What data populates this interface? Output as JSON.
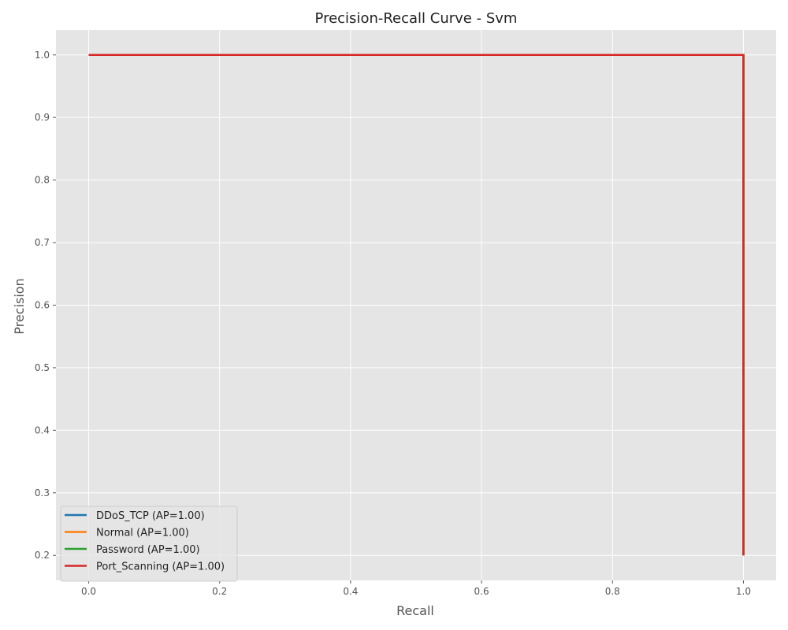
{
  "chart_data": {
    "type": "line",
    "title": "Precision-Recall Curve - Svm",
    "xlabel": "Recall",
    "ylabel": "Precision",
    "xlim": [
      -0.05,
      1.05
    ],
    "ylim": [
      0.16,
      1.04
    ],
    "xticks": [
      0.0,
      0.2,
      0.4,
      0.6,
      0.8,
      1.0
    ],
    "xtick_labels": [
      "0.0",
      "0.2",
      "0.4",
      "0.6",
      "0.8",
      "1.0"
    ],
    "yticks": [
      0.2,
      0.3,
      0.4,
      0.5,
      0.6,
      0.7,
      0.8,
      0.9,
      1.0
    ],
    "ytick_labels": [
      "0.2",
      "0.3",
      "0.4",
      "0.5",
      "0.6",
      "0.7",
      "0.8",
      "0.9",
      "1.0"
    ],
    "grid": true,
    "legend_position": "bottom-left",
    "background_color": "#e5e5e5",
    "series": [
      {
        "name": "DDoS_TCP (AP=1.00)",
        "color": "#1f77b4",
        "x": [
          0.0,
          1.0,
          1.0
        ],
        "y": [
          1.0,
          1.0,
          0.2
        ]
      },
      {
        "name": "Normal (AP=1.00)",
        "color": "#ff7f0e",
        "x": [
          0.0,
          1.0,
          1.0
        ],
        "y": [
          1.0,
          1.0,
          0.2
        ]
      },
      {
        "name": "Password (AP=1.00)",
        "color": "#2ca02c",
        "x": [
          0.0,
          1.0,
          1.0
        ],
        "y": [
          1.0,
          1.0,
          0.2
        ]
      },
      {
        "name": "Port_Scanning (AP=1.00)",
        "color": "#d62728",
        "x": [
          0.0,
          1.0,
          1.0
        ],
        "y": [
          1.0,
          1.0,
          0.2
        ]
      }
    ]
  }
}
